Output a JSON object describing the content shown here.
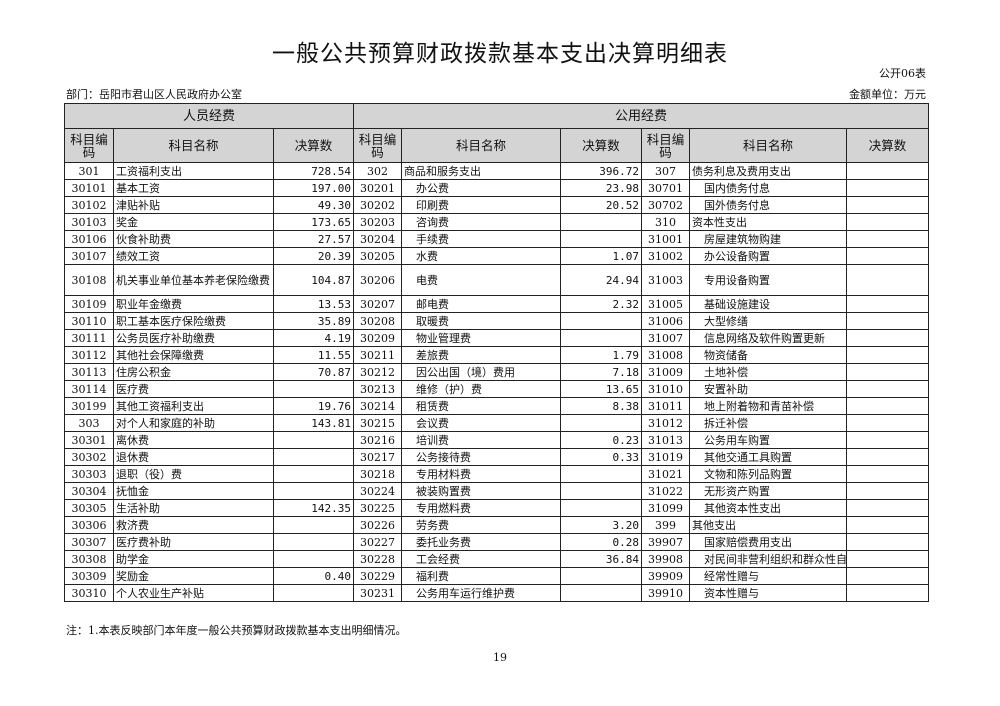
{
  "title": "一般公共预算财政拨款基本支出决算明细表",
  "table_no": "公开06表",
  "department": "部门：岳阳市君山区人民政府办公室",
  "unit": "金额单位：万元",
  "groups": {
    "personnel": "人员经费",
    "public": "公用经费"
  },
  "headers": {
    "code": "科目编码",
    "name": "科目名称",
    "amount": "决算数"
  },
  "rows": [
    [
      [
        "301",
        "工资福利支出",
        "728.54"
      ],
      [
        "302",
        "商品和服务支出",
        "396.72"
      ],
      [
        "307",
        "债务利息及费用支出",
        ""
      ]
    ],
    [
      [
        "30101",
        "基本工资",
        "197.00"
      ],
      [
        "30201",
        "办公费",
        "23.98"
      ],
      [
        "30701",
        "国内债务付息",
        ""
      ]
    ],
    [
      [
        "30102",
        "津贴补贴",
        "49.30"
      ],
      [
        "30202",
        "印刷费",
        "20.52"
      ],
      [
        "30702",
        "国外债务付息",
        ""
      ]
    ],
    [
      [
        "30103",
        "奖金",
        "173.65"
      ],
      [
        "30203",
        "咨询费",
        ""
      ],
      [
        "310",
        "资本性支出",
        ""
      ]
    ],
    [
      [
        "30106",
        "伙食补助费",
        "27.57"
      ],
      [
        "30204",
        "手续费",
        ""
      ],
      [
        "31001",
        "房屋建筑物购建",
        ""
      ]
    ],
    [
      [
        "30107",
        "绩效工资",
        "20.39"
      ],
      [
        "30205",
        "水费",
        "1.07"
      ],
      [
        "31002",
        "办公设备购置",
        ""
      ]
    ],
    [
      [
        "30108",
        "机关事业单位基本养老保险缴费",
        "104.87"
      ],
      [
        "30206",
        "电费",
        "24.94"
      ],
      [
        "31003",
        "专用设备购置",
        ""
      ]
    ],
    [
      [
        "30109",
        "职业年金缴费",
        "13.53"
      ],
      [
        "30207",
        "邮电费",
        "2.32"
      ],
      [
        "31005",
        "基础设施建设",
        ""
      ]
    ],
    [
      [
        "30110",
        "职工基本医疗保险缴费",
        "35.89"
      ],
      [
        "30208",
        "取暖费",
        ""
      ],
      [
        "31006",
        "大型修缮",
        ""
      ]
    ],
    [
      [
        "30111",
        "公务员医疗补助缴费",
        "4.19"
      ],
      [
        "30209",
        "物业管理费",
        ""
      ],
      [
        "31007",
        "信息网络及软件购置更新",
        ""
      ]
    ],
    [
      [
        "30112",
        "其他社会保障缴费",
        "11.55"
      ],
      [
        "30211",
        "差旅费",
        "1.79"
      ],
      [
        "31008",
        "物资储备",
        ""
      ]
    ],
    [
      [
        "30113",
        "住房公积金",
        "70.87"
      ],
      [
        "30212",
        "因公出国（境）费用",
        "7.18"
      ],
      [
        "31009",
        "土地补偿",
        ""
      ]
    ],
    [
      [
        "30114",
        "医疗费",
        ""
      ],
      [
        "30213",
        "维修（护）费",
        "13.65"
      ],
      [
        "31010",
        "安置补助",
        ""
      ]
    ],
    [
      [
        "30199",
        "其他工资福利支出",
        "19.76"
      ],
      [
        "30214",
        "租赁费",
        "8.38"
      ],
      [
        "31011",
        "地上附着物和青苗补偿",
        ""
      ]
    ],
    [
      [
        "303",
        "对个人和家庭的补助",
        "143.81"
      ],
      [
        "30215",
        "会议费",
        ""
      ],
      [
        "31012",
        "拆迁补偿",
        ""
      ]
    ],
    [
      [
        "30301",
        "离休费",
        ""
      ],
      [
        "30216",
        "培训费",
        "0.23"
      ],
      [
        "31013",
        "公务用车购置",
        ""
      ]
    ],
    [
      [
        "30302",
        "退休费",
        ""
      ],
      [
        "30217",
        "公务接待费",
        "0.33"
      ],
      [
        "31019",
        "其他交通工具购置",
        ""
      ]
    ],
    [
      [
        "30303",
        "退职（役）费",
        ""
      ],
      [
        "30218",
        "专用材料费",
        ""
      ],
      [
        "31021",
        "文物和陈列品购置",
        ""
      ]
    ],
    [
      [
        "30304",
        "抚恤金",
        ""
      ],
      [
        "30224",
        "被装购置费",
        ""
      ],
      [
        "31022",
        "无形资产购置",
        ""
      ]
    ],
    [
      [
        "30305",
        "生活补助",
        "142.35"
      ],
      [
        "30225",
        "专用燃料费",
        ""
      ],
      [
        "31099",
        "其他资本性支出",
        ""
      ]
    ],
    [
      [
        "30306",
        "救济费",
        ""
      ],
      [
        "30226",
        "劳务费",
        "3.20"
      ],
      [
        "399",
        "其他支出",
        ""
      ]
    ],
    [
      [
        "30307",
        "医疗费补助",
        ""
      ],
      [
        "30227",
        "委托业务费",
        "0.28"
      ],
      [
        "39907",
        "国家赔偿费用支出",
        ""
      ]
    ],
    [
      [
        "30308",
        "助学金",
        ""
      ],
      [
        "30228",
        "工会经费",
        "36.84"
      ],
      [
        "39908",
        "对民间非营利组织和群众性自",
        ""
      ]
    ],
    [
      [
        "30309",
        "奖励金",
        "0.40"
      ],
      [
        "30229",
        "福利费",
        ""
      ],
      [
        "39909",
        "经常性赠与",
        ""
      ]
    ],
    [
      [
        "30310",
        "个人农业生产补贴",
        ""
      ],
      [
        "30231",
        "公务用车运行维护费",
        ""
      ],
      [
        "39910",
        "资本性赠与",
        ""
      ]
    ]
  ],
  "note": "注：1.本表反映部门本年度一般公共预算财政拨款基本支出明细情况。",
  "page_number": "19"
}
